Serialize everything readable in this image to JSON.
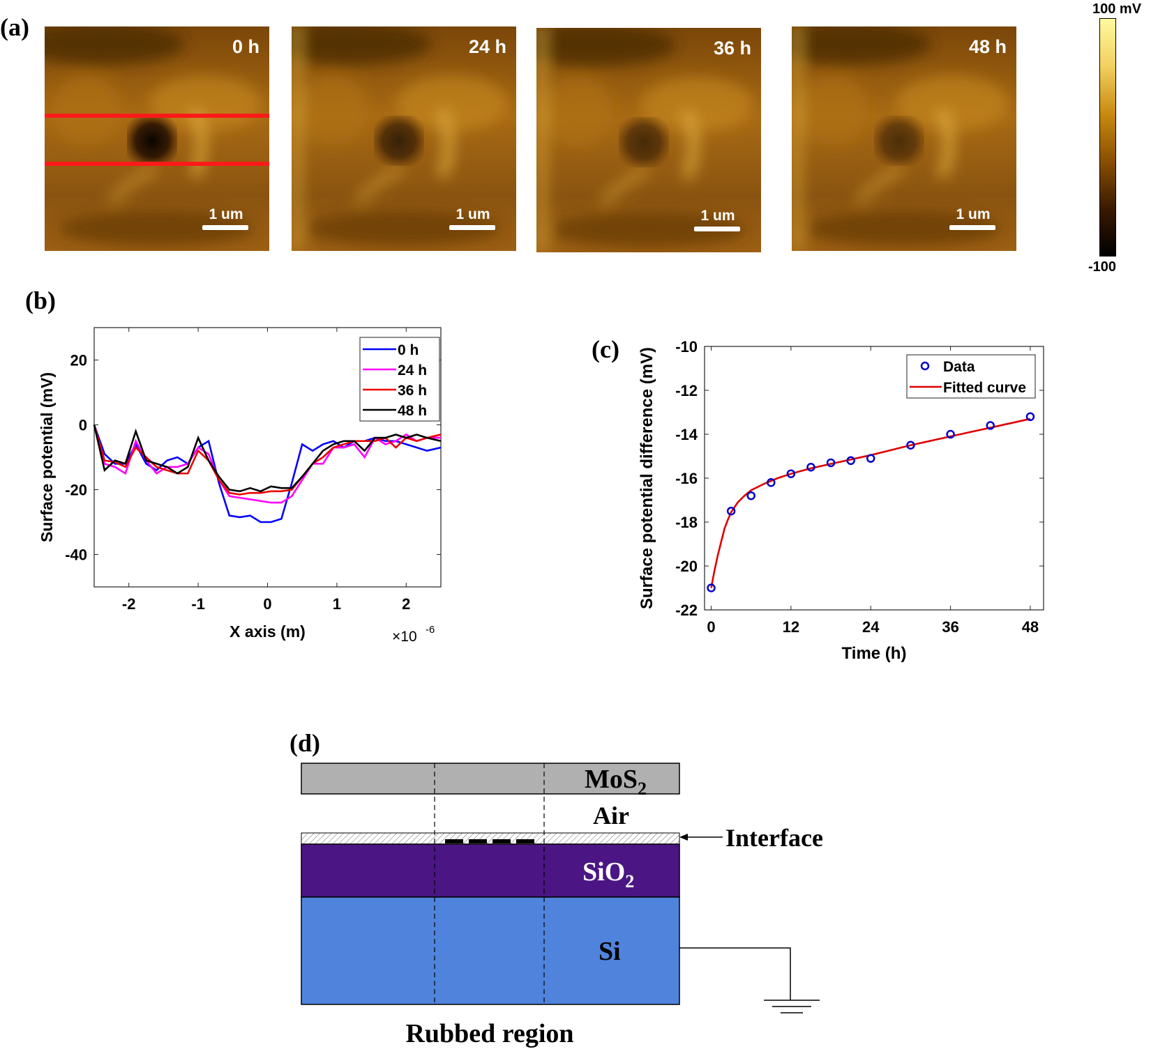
{
  "panel_labels": {
    "a": "(a)",
    "b": "(b)",
    "c": "(c)",
    "d": "(d)"
  },
  "panel_a": {
    "images": [
      {
        "time": "0 h",
        "scale": "1 um",
        "well_depth": 1.0,
        "lines": true
      },
      {
        "time": "24 h",
        "scale": "1 um",
        "well_depth": 0.7,
        "lines": false
      },
      {
        "time": "36 h",
        "scale": "1 um",
        "well_depth": 0.6,
        "lines": false
      },
      {
        "time": "48 h",
        "scale": "1 um",
        "well_depth": 0.55,
        "lines": false
      }
    ],
    "colorbar": {
      "max": "100 mV",
      "min": "-100",
      "colors": [
        "#000000",
        "#3a1a00",
        "#8a4f00",
        "#c98a10",
        "#f2d060",
        "#fffaa0"
      ]
    },
    "line_color": "#ff1a1a"
  },
  "chart_data": [
    {
      "type": "line",
      "panel": "b",
      "xlabel": "X axis (m)",
      "ylabel": "Surface potential (mV)",
      "xexponent": "×10",
      "xexponent_power": "-6",
      "xlim": [
        -2.5,
        2.5
      ],
      "ylim": [
        -50,
        30
      ],
      "xticks": [
        -2,
        -1,
        0,
        1,
        2
      ],
      "yticks": [
        20,
        0,
        -20,
        -40
      ],
      "legend_position": "top-right",
      "x": [
        -2.5,
        -2.35,
        -2.2,
        -2.05,
        -1.9,
        -1.75,
        -1.6,
        -1.45,
        -1.3,
        -1.15,
        -1.0,
        -0.85,
        -0.7,
        -0.55,
        -0.4,
        -0.25,
        -0.1,
        0.05,
        0.2,
        0.35,
        0.5,
        0.65,
        0.8,
        0.95,
        1.1,
        1.25,
        1.4,
        1.55,
        1.7,
        1.85,
        2.0,
        2.15,
        2.3,
        2.5
      ],
      "series": [
        {
          "name": "0 h",
          "color": "#0000ff",
          "values": [
            0,
            -9,
            -12,
            -12,
            -6,
            -12,
            -14,
            -11,
            -10,
            -12,
            -7,
            -5,
            -18,
            -28,
            -28.5,
            -28,
            -30,
            -30,
            -29,
            -18,
            -6,
            -8,
            -6,
            -5,
            -7,
            -5,
            -5,
            -4,
            -5,
            -5,
            -6,
            -7,
            -8,
            -7
          ]
        },
        {
          "name": "24 h",
          "color": "#ff00ff",
          "values": [
            0,
            -12,
            -13,
            -15,
            -5,
            -11,
            -15,
            -13,
            -13,
            -12,
            -7,
            -9,
            -17,
            -22,
            -22.5,
            -23,
            -23.5,
            -24,
            -24,
            -22,
            -17,
            -12,
            -12,
            -7,
            -7,
            -6,
            -10,
            -4,
            -6,
            -5,
            -3,
            -5,
            -4,
            -4
          ]
        },
        {
          "name": "36 h",
          "color": "#ee0000",
          "values": [
            0,
            -11,
            -11.5,
            -13,
            -7,
            -10,
            -13,
            -14,
            -15,
            -15,
            -8,
            -11,
            -17,
            -21,
            -21.5,
            -21,
            -21,
            -20.5,
            -20.5,
            -20,
            -16,
            -12,
            -10,
            -7,
            -6,
            -5,
            -5,
            -5,
            -4,
            -7,
            -4,
            -5,
            -4,
            -3
          ]
        },
        {
          "name": "48 h",
          "color": "#000000",
          "values": [
            0,
            -14,
            -11,
            -12,
            -2,
            -11,
            -12,
            -13,
            -15,
            -13,
            -4,
            -11,
            -16,
            -20,
            -20.5,
            -19.5,
            -20.5,
            -19,
            -19.5,
            -19.5,
            -16,
            -12,
            -8,
            -6,
            -5,
            -5,
            -8,
            -4,
            -4,
            -3,
            -4,
            -3,
            -4,
            -5
          ]
        }
      ]
    },
    {
      "type": "scatter",
      "panel": "c",
      "xlabel": "Time (h)",
      "ylabel": "Surface potential difference (mV)",
      "xlim": [
        -1,
        50
      ],
      "ylim": [
        -22,
        -10
      ],
      "xticks": [
        0,
        12,
        24,
        36,
        48
      ],
      "yticks": [
        -10,
        -12,
        -14,
        -16,
        -18,
        -20,
        -22
      ],
      "legend_position": "top-right",
      "series": [
        {
          "name": "Data",
          "color": "#0000cc",
          "marker": "circle",
          "x": [
            0,
            3,
            6,
            9,
            12,
            15,
            18,
            21,
            24,
            30,
            36,
            42,
            48
          ],
          "y": [
            -21.0,
            -17.5,
            -16.8,
            -16.2,
            -15.8,
            -15.5,
            -15.3,
            -15.2,
            -15.1,
            -14.5,
            -14.0,
            -13.6,
            -13.2
          ]
        },
        {
          "name": "Fitted curve",
          "color": "#dd0000",
          "marker": "line",
          "x": [
            0,
            0.5,
            1,
            1.5,
            2,
            2.5,
            3,
            4,
            5,
            6,
            8,
            10,
            12,
            15,
            18,
            21,
            24,
            30,
            36,
            42,
            48
          ],
          "y": [
            -21.0,
            -20.2,
            -19.5,
            -18.9,
            -18.3,
            -17.9,
            -17.55,
            -17.1,
            -16.8,
            -16.55,
            -16.25,
            -16.0,
            -15.8,
            -15.55,
            -15.35,
            -15.15,
            -14.95,
            -14.5,
            -14.1,
            -13.7,
            -13.3
          ]
        }
      ]
    }
  ],
  "panel_d": {
    "labels": {
      "mos2": "MoS",
      "mos2_sub": "2",
      "air": "Air",
      "interface": "Interface",
      "sio2": "SiO",
      "sio2_sub": "2",
      "si": "Si",
      "rubbed": "Rubbed region"
    },
    "colors": {
      "mos2": "#b0b0b0",
      "sio2": "#4b1683",
      "si": "#5084dc",
      "tip": "#fbb98a"
    }
  }
}
